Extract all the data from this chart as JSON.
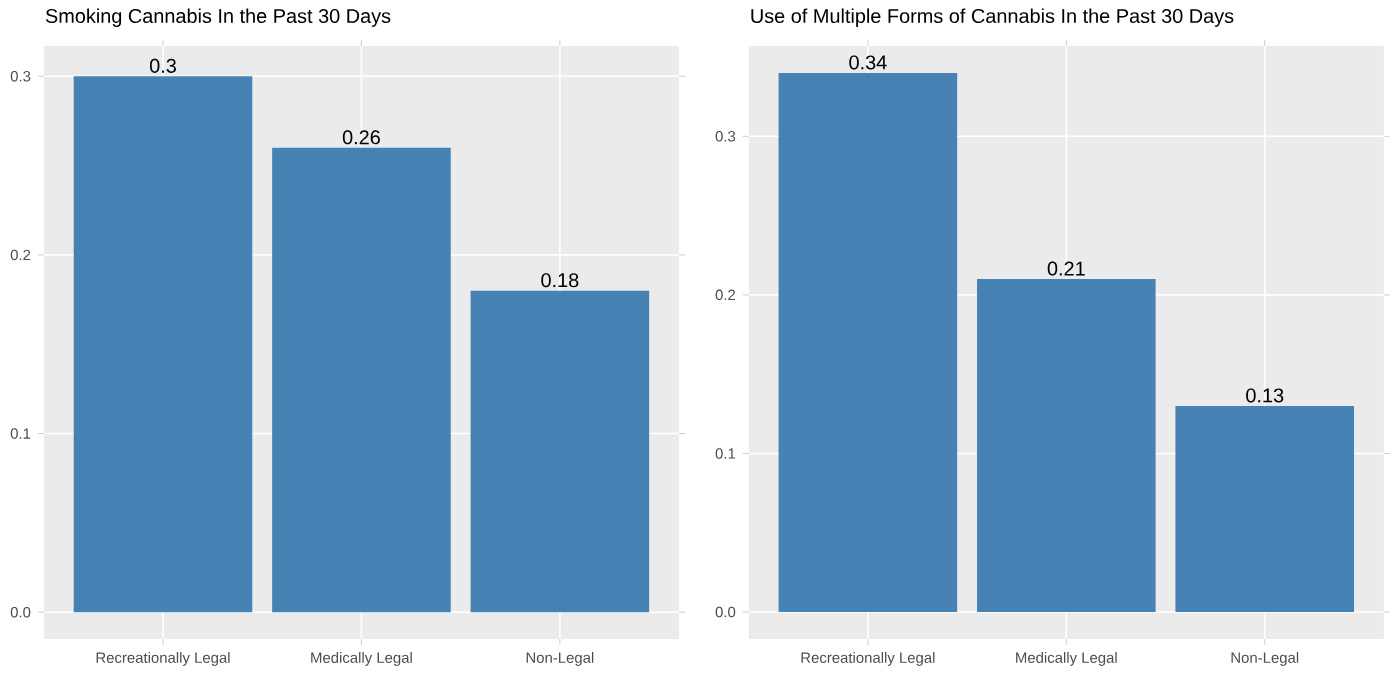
{
  "chart_data": [
    {
      "type": "bar",
      "title": "Smoking Cannabis In the Past 30 Days",
      "categories": [
        "Recreationally Legal",
        "Medically Legal",
        "Non-Legal"
      ],
      "values": [
        0.3,
        0.26,
        0.18
      ],
      "color": "#4682b4",
      "data_labels": true,
      "ylim": [
        -0.015,
        0.317
      ],
      "yticks": [
        {
          "value": 0,
          "label": "0.0"
        },
        0.1,
        0.2,
        0.3
      ],
      "grid": true
    },
    {
      "type": "bar",
      "title": "Use of Multiple Forms of Cannabis In the Past 30 Days",
      "categories": [
        "Recreationally Legal",
        "Medically Legal",
        "Non-Legal"
      ],
      "values": [
        0.34,
        0.21,
        0.13
      ],
      "color": "#4682b4",
      "data_labels": true,
      "ylim": [
        -0.017,
        0.357
      ],
      "yticks": [
        {
          "value": 0,
          "label": "0.0"
        },
        0.1,
        0.2,
        0.3
      ],
      "grid": true
    }
  ]
}
